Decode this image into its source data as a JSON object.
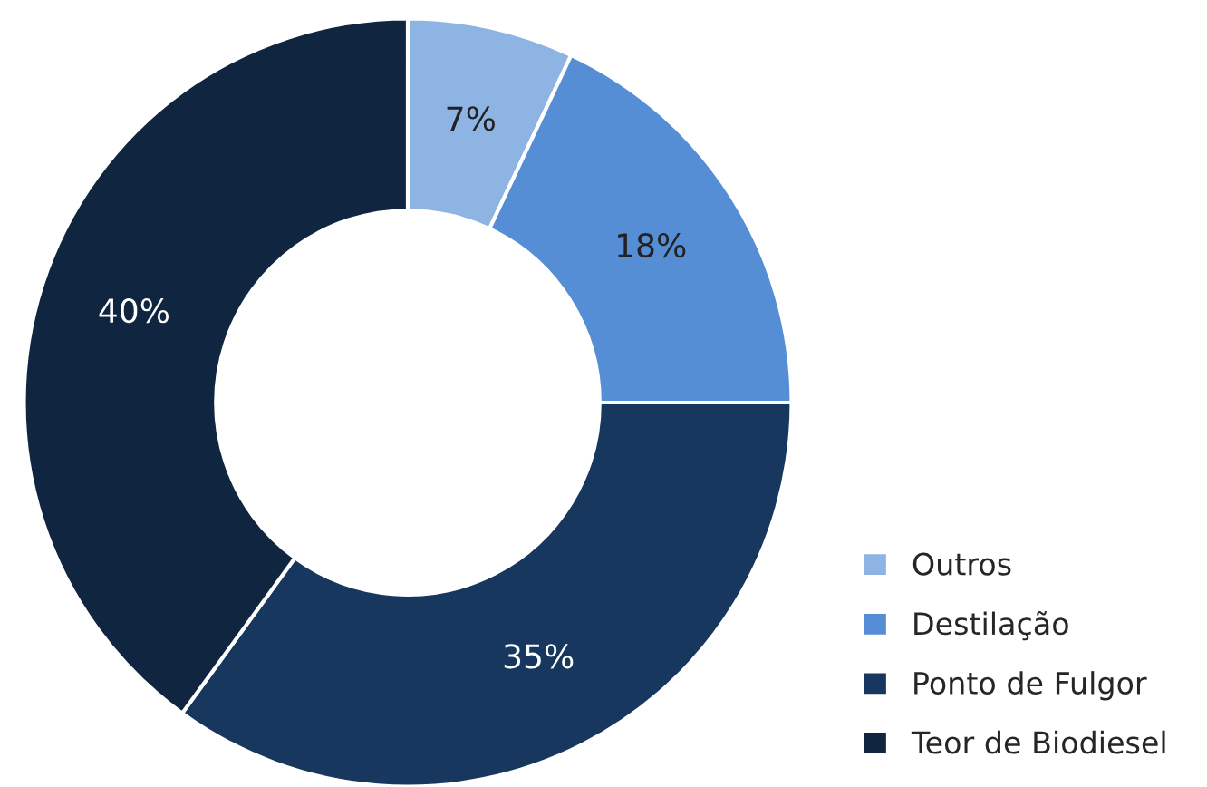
{
  "chart_data": {
    "type": "donut",
    "categories": [
      "Outros",
      "Destilação",
      "Ponto de Fulgor",
      "Teor de Biodiesel"
    ],
    "values": [
      7,
      18,
      35,
      40
    ],
    "colors": [
      "#8eb4e3",
      "#558ed5",
      "#17375e",
      "#10253f"
    ],
    "value_labels": [
      "7%",
      "18%",
      "35%",
      "40%"
    ],
    "legend": "bottom right"
  }
}
